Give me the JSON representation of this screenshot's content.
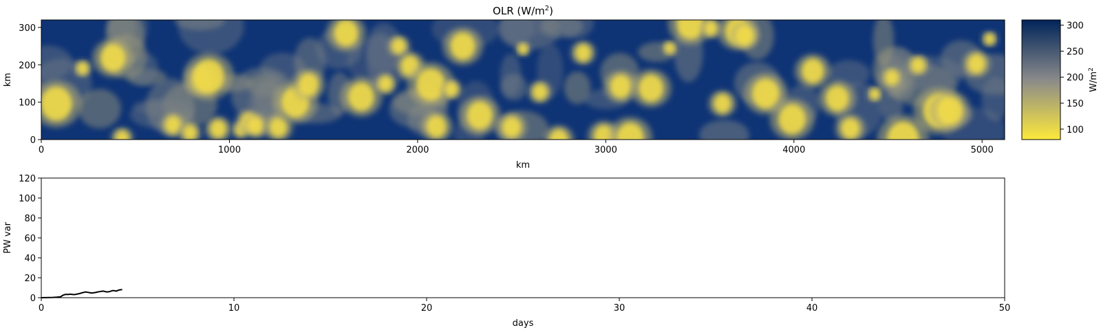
{
  "chart_data": [
    {
      "type": "heatmap",
      "title": "OLR (W/m",
      "title_sup": "2",
      "title_suffix": ")",
      "xlabel": "km",
      "ylabel": "km",
      "xlim": [
        0,
        5120
      ],
      "ylim": [
        0,
        320
      ],
      "xticks": [
        "0",
        "1000",
        "2000",
        "3000",
        "4000",
        "5000"
      ],
      "yticks": [
        "0",
        "100",
        "200",
        "300"
      ],
      "colormap": {
        "low": "#fde93c",
        "mid": "#8a8a8a",
        "high": "#00245a"
      },
      "colorbar": {
        "label": "W/m",
        "label_sup": "2",
        "range": [
          80,
          310
        ],
        "ticks": [
          "100",
          "150",
          "200",
          "250",
          "300"
        ]
      },
      "blobs_x_km": [
        80,
        220,
        380,
        430,
        700,
        790,
        850,
        890,
        940,
        1060,
        1100,
        1140,
        1260,
        1350,
        1420,
        1620,
        1700,
        1830,
        1900,
        1960,
        2070,
        2100,
        2180,
        2240,
        2330,
        2500,
        2560,
        2650,
        2750,
        2880,
        2990,
        3080,
        3130,
        3240,
        3340,
        3450,
        3560,
        3620,
        3700,
        3740,
        3850,
        3990,
        4100,
        4230,
        4300,
        4430,
        4520,
        4580,
        4660,
        4770,
        4830,
        4970,
        5040
      ]
    },
    {
      "type": "line",
      "title": "",
      "xlabel": "days",
      "ylabel": "PW var",
      "xlim": [
        0,
        50
      ],
      "ylim": [
        0,
        120
      ],
      "xticks": [
        "0",
        "10",
        "20",
        "30",
        "40",
        "50"
      ],
      "yticks": [
        "0",
        "20",
        "40",
        "60",
        "80",
        "100",
        "120"
      ],
      "color": "#000000",
      "series": [
        {
          "x": [
            0,
            0.2,
            0.4,
            0.6,
            0.8,
            1.0,
            1.1,
            1.2,
            1.3,
            1.4,
            1.5,
            1.6,
            1.7,
            1.8,
            1.9,
            2.0,
            2.1,
            2.2,
            2.3,
            2.4,
            2.5,
            2.6,
            2.7,
            2.8,
            2.9,
            3.0,
            3.1,
            3.2,
            3.3,
            3.4,
            3.5,
            3.6,
            3.7,
            3.8,
            3.9,
            4.0,
            4.1,
            4.2
          ],
          "y": [
            0,
            0.1,
            0.2,
            0.3,
            0.5,
            0.8,
            2.2,
            3.0,
            3.4,
            3.2,
            3.5,
            3.3,
            3.1,
            3.4,
            3.8,
            4.2,
            4.8,
            5.3,
            5.8,
            5.4,
            5.1,
            4.7,
            4.9,
            5.2,
            5.6,
            6.0,
            6.3,
            6.6,
            6.2,
            5.8,
            5.9,
            6.4,
            7.2,
            7.0,
            6.6,
            7.5,
            7.9,
            8.1
          ]
        }
      ]
    }
  ]
}
